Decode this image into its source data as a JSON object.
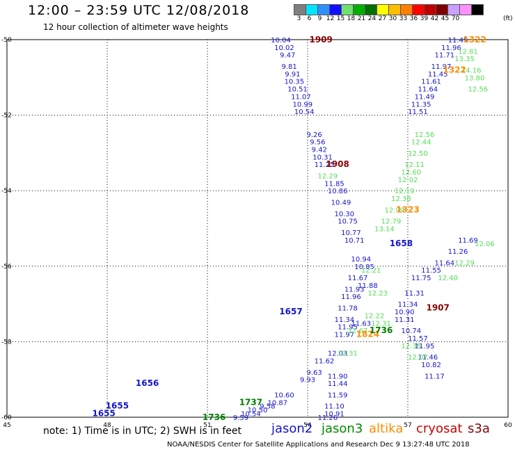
{
  "header": {
    "title": "12:00 – 23:59 UTC 12/08/2018",
    "subtitle": "12 hour collection of altimeter wave heights"
  },
  "color_scale": {
    "values": [
      "3",
      "6",
      "9",
      "12",
      "15",
      "18",
      "21",
      "24",
      "27",
      "30",
      "33",
      "36",
      "39",
      "42",
      "45",
      "70"
    ],
    "unit": "(ft)",
    "colors": [
      "#7f7f7f",
      "#00e5ff",
      "#2f8fff",
      "#1010ff",
      "#70e070",
      "#00b000",
      "#007000",
      "#ffff00",
      "#ffbe00",
      "#ff8000",
      "#ff0000",
      "#c00000",
      "#800000",
      "#c8a0ff",
      "#ff90ff",
      "#000000"
    ]
  },
  "chart_data": {
    "type": "scatter",
    "xlabel": "",
    "ylabel": "",
    "xlim": [
      45,
      60
    ],
    "ylim": [
      -60,
      -50
    ],
    "x_ticks": [
      "45",
      "48",
      "51",
      "54",
      "57",
      "60"
    ],
    "y_ticks": [
      "-50",
      "-52",
      "-54",
      "-56",
      "-58",
      "-60"
    ],
    "grid": true,
    "series": [
      {
        "name": "jason2",
        "color": "#1515cc",
        "points": [
          [
            53.2,
            -50.0,
            "10.04"
          ],
          [
            53.3,
            -50.2,
            "10.02"
          ],
          [
            53.4,
            -50.4,
            "9.47"
          ],
          [
            53.45,
            -50.7,
            "9.81"
          ],
          [
            53.55,
            -50.9,
            "9.91"
          ],
          [
            53.6,
            -51.1,
            "10.35"
          ],
          [
            53.7,
            -51.3,
            "10.51"
          ],
          [
            53.8,
            -51.5,
            "11.07"
          ],
          [
            53.85,
            -51.7,
            "10.99"
          ],
          [
            53.9,
            -51.9,
            "10.54"
          ],
          [
            54.2,
            -52.5,
            "9.26"
          ],
          [
            54.3,
            -52.7,
            "9.56"
          ],
          [
            54.35,
            -52.9,
            "9.42"
          ],
          [
            54.45,
            -53.1,
            "10.31"
          ],
          [
            54.5,
            -53.3,
            "11.25"
          ],
          [
            54.8,
            -53.8,
            "11.85"
          ],
          [
            54.9,
            -54.0,
            "10.86"
          ],
          [
            55.0,
            -54.3,
            "10.49"
          ],
          [
            55.1,
            -54.6,
            "10.30"
          ],
          [
            55.2,
            -54.8,
            "10.75"
          ],
          [
            55.3,
            -55.1,
            "10.77"
          ],
          [
            55.4,
            -55.3,
            "10.71"
          ],
          [
            55.6,
            -55.8,
            "10.94"
          ],
          [
            55.7,
            -56.0,
            "10.85"
          ],
          [
            55.5,
            -56.3,
            "11.67"
          ],
          [
            55.8,
            -56.5,
            "11.88"
          ],
          [
            55.4,
            -56.6,
            "11.93"
          ],
          [
            55.3,
            -56.8,
            "11.96"
          ],
          [
            55.2,
            -57.1,
            "11.78"
          ],
          [
            55.1,
            -57.4,
            "11.34"
          ],
          [
            55.6,
            -57.5,
            "11.63"
          ],
          [
            55.2,
            -57.6,
            "11.95"
          ],
          [
            55.1,
            -57.8,
            "11.97"
          ],
          [
            54.9,
            -58.3,
            "12.03"
          ],
          [
            54.5,
            -58.5,
            "11.62"
          ],
          [
            54.2,
            -58.8,
            "9.63"
          ],
          [
            54.9,
            -58.9,
            "11.90"
          ],
          [
            54.0,
            -59.0,
            "9.93"
          ],
          [
            54.9,
            -59.1,
            "11.44"
          ],
          [
            54.9,
            -59.4,
            "11.59"
          ],
          [
            54.8,
            -59.7,
            "11.10"
          ],
          [
            54.8,
            -59.9,
            "10.91"
          ],
          [
            54.6,
            -60.0,
            "11.26"
          ],
          [
            53.3,
            -59.4,
            "10.60"
          ],
          [
            53.1,
            -59.6,
            "10.87"
          ],
          [
            52.8,
            -59.7,
            "9.58"
          ],
          [
            52.5,
            -59.8,
            "10.50"
          ],
          [
            52.3,
            -59.9,
            "10.54"
          ],
          [
            52.0,
            -60.0,
            "9.59"
          ],
          [
            58.5,
            -50.0,
            "11.49"
          ],
          [
            58.3,
            -50.2,
            "11.96"
          ],
          [
            58.1,
            -50.4,
            "11.71"
          ],
          [
            58.0,
            -50.7,
            "11.97"
          ],
          [
            57.9,
            -50.9,
            "11.45"
          ],
          [
            57.7,
            -51.1,
            "11.61"
          ],
          [
            57.6,
            -51.3,
            "11.64"
          ],
          [
            57.5,
            -51.5,
            "11.49"
          ],
          [
            57.4,
            -51.7,
            "11.35"
          ],
          [
            57.3,
            -51.9,
            "11.51"
          ],
          [
            58.8,
            -55.3,
            "11.69"
          ],
          [
            58.5,
            -55.6,
            "11.26"
          ],
          [
            58.1,
            -55.9,
            "11.64"
          ],
          [
            57.7,
            -56.1,
            "11.55"
          ],
          [
            57.4,
            -56.3,
            "11.75"
          ],
          [
            57.2,
            -56.7,
            "11.31"
          ],
          [
            57.0,
            -57.0,
            "11.34"
          ],
          [
            56.9,
            -57.2,
            "10.90"
          ],
          [
            56.9,
            -57.4,
            "11.31"
          ],
          [
            57.1,
            -57.7,
            "10.74"
          ],
          [
            57.3,
            -57.9,
            "11.57"
          ],
          [
            57.5,
            -58.1,
            "11.95"
          ],
          [
            57.6,
            -58.4,
            "11.46"
          ],
          [
            57.7,
            -58.6,
            "10.82"
          ],
          [
            57.8,
            -58.9,
            "11.17"
          ]
        ]
      },
      {
        "name": "jason3",
        "color": "#55dd55",
        "points": [
          [
            54.6,
            -53.6,
            "12.29"
          ],
          [
            58.8,
            -50.3,
            "12.81"
          ],
          [
            58.7,
            -50.5,
            "13.35"
          ],
          [
            58.9,
            -50.8,
            "14.16"
          ],
          [
            59.0,
            -51.0,
            "13.80"
          ],
          [
            59.1,
            -51.3,
            "12.56"
          ],
          [
            57.5,
            -52.5,
            "12.56"
          ],
          [
            57.4,
            -52.7,
            "12.44"
          ],
          [
            57.3,
            -53.0,
            "12.50"
          ],
          [
            57.2,
            -53.3,
            "12.11"
          ],
          [
            57.1,
            -53.5,
            "12.60"
          ],
          [
            57.0,
            -53.7,
            "12.02"
          ],
          [
            56.9,
            -54.0,
            "12.19"
          ],
          [
            56.8,
            -54.2,
            "12.38"
          ],
          [
            56.6,
            -54.5,
            "12.99"
          ],
          [
            56.5,
            -54.8,
            "12.79"
          ],
          [
            56.3,
            -55.0,
            "13.14"
          ],
          [
            55.9,
            -56.1,
            "12.21"
          ],
          [
            56.1,
            -56.7,
            "12.23"
          ],
          [
            56.0,
            -57.3,
            "12.22"
          ],
          [
            56.2,
            -57.5,
            "12.31"
          ],
          [
            55.5,
            -57.7,
            "12.67"
          ],
          [
            55.2,
            -58.3,
            "12.31"
          ],
          [
            59.3,
            -55.4,
            "12.06"
          ],
          [
            58.7,
            -55.9,
            "12.29"
          ],
          [
            58.2,
            -56.3,
            "12.40"
          ],
          [
            57.1,
            -58.1,
            "12.35"
          ],
          [
            57.3,
            -58.4,
            "12.07"
          ]
        ]
      },
      {
        "name": "cryosat",
        "color": "#8b0000",
        "points": [
          [
            54.4,
            -50.0,
            "1909"
          ],
          [
            54.9,
            -53.3,
            "1908"
          ],
          [
            57.9,
            -57.1,
            "1907"
          ]
        ]
      },
      {
        "name": "altika",
        "color": "#ff8c00",
        "points": [
          [
            59.0,
            -50.0,
            "1322"
          ],
          [
            58.4,
            -50.8,
            "1322"
          ],
          [
            57.0,
            -54.5,
            "1323"
          ],
          [
            55.8,
            -57.8,
            "1824"
          ]
        ]
      },
      {
        "name": "jason2-times",
        "color": "#1515cc",
        "points": [
          [
            56.8,
            -55.4,
            "1658"
          ],
          [
            53.5,
            -57.2,
            "1657"
          ],
          [
            49.2,
            -59.1,
            "1656"
          ],
          [
            48.3,
            -59.7,
            "1655"
          ],
          [
            47.9,
            -59.9,
            "1655"
          ]
        ]
      },
      {
        "name": "jason3-times",
        "color": "#008000",
        "points": [
          [
            56.2,
            -57.7,
            "1736"
          ],
          [
            52.3,
            -59.6,
            "1737"
          ],
          [
            51.2,
            -60.0,
            "1736"
          ]
        ]
      }
    ]
  },
  "footer": {
    "note": "note: 1) Time is in UTC; 2) SWH is in feet",
    "legend": [
      {
        "label": "jason2",
        "color": "#1515cc"
      },
      {
        "label": "jason3",
        "color": "#008a00"
      },
      {
        "label": "altika",
        "color": "#ff8c00"
      },
      {
        "label": "cryosat",
        "color": "#cc0000"
      },
      {
        "label": "s3a",
        "color": "#8b0000"
      }
    ],
    "credit": "NOAA/NESDIS Center for Satellite Applications and Research   Dec  9 13:27:48 UTC 2018"
  }
}
